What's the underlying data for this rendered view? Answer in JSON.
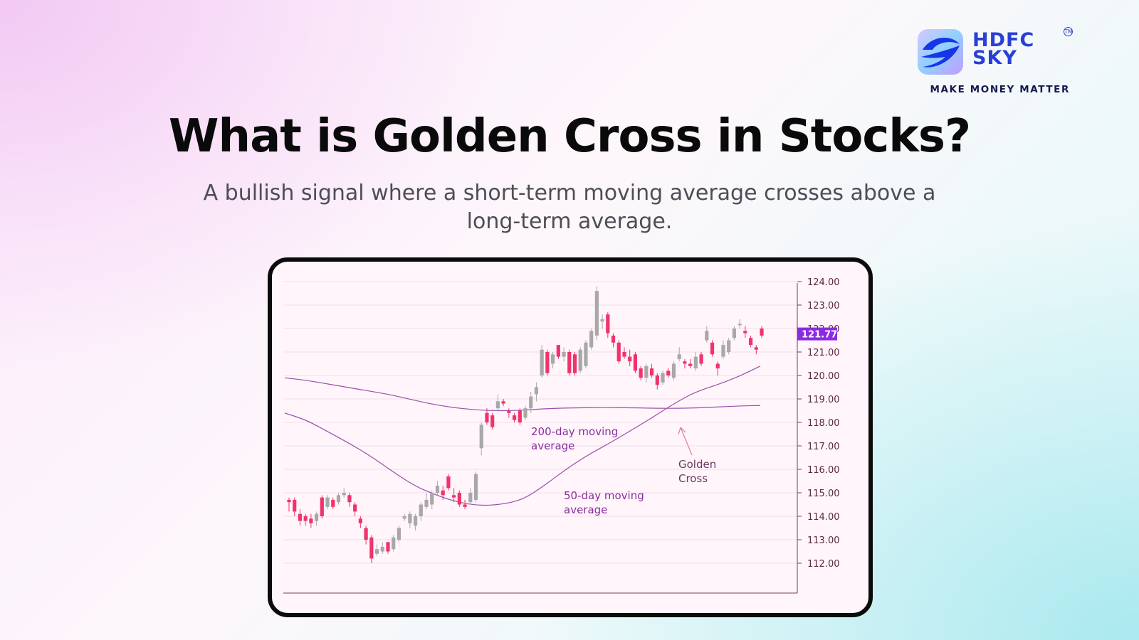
{
  "brand": {
    "name_line1": "HDFC",
    "name_line2": "SKY",
    "trademark": "TM",
    "tagline": "MAKE MONEY MATTER",
    "color_primary": "#2a3fd6",
    "color_tagline": "#14194f"
  },
  "heading": {
    "title": "What is Golden Cross in Stocks?",
    "subtitle": "A bullish signal where a short-term moving average crosses above a long-term average."
  },
  "chart_data": {
    "type": "candlestick",
    "ylim": [
      111,
      124.3
    ],
    "y_ticks": [
      "124.00",
      "123.00",
      "122.00",
      "121.00",
      "120.00",
      "119.00",
      "118.00",
      "117.00",
      "116.00",
      "115.00",
      "114.00",
      "113.00",
      "112.00"
    ],
    "price_label": "121.77",
    "grid": true,
    "colors": {
      "up": "#a8a8a8",
      "down": "#f0336b",
      "moving_average": "#9a4ea8",
      "price_tag": "#8a2be2",
      "annotation_text": "#8a2e9e",
      "golden_cross_text": "#6a3a5a"
    },
    "candles": [
      {
        "o": 114.7,
        "h": 114.8,
        "l": 114.2,
        "c": 114.6
      },
      {
        "o": 114.7,
        "h": 114.8,
        "l": 114.0,
        "c": 114.2
      },
      {
        "o": 114.1,
        "h": 114.3,
        "l": 113.6,
        "c": 113.8
      },
      {
        "o": 114.0,
        "h": 114.1,
        "l": 113.6,
        "c": 113.8
      },
      {
        "o": 113.9,
        "h": 114.1,
        "l": 113.5,
        "c": 113.7
      },
      {
        "o": 113.8,
        "h": 114.2,
        "l": 113.6,
        "c": 114.1
      },
      {
        "o": 114.8,
        "h": 114.9,
        "l": 113.9,
        "c": 114.0
      },
      {
        "o": 114.4,
        "h": 114.9,
        "l": 114.3,
        "c": 114.8
      },
      {
        "o": 114.7,
        "h": 114.8,
        "l": 114.3,
        "c": 114.4
      },
      {
        "o": 114.6,
        "h": 115.0,
        "l": 114.5,
        "c": 114.9
      },
      {
        "o": 114.9,
        "h": 115.2,
        "l": 114.8,
        "c": 115.0
      },
      {
        "o": 114.9,
        "h": 115.0,
        "l": 114.4,
        "c": 114.6
      },
      {
        "o": 114.5,
        "h": 114.6,
        "l": 114.0,
        "c": 114.2
      },
      {
        "o": 113.9,
        "h": 114.0,
        "l": 113.5,
        "c": 113.7
      },
      {
        "o": 113.5,
        "h": 113.6,
        "l": 112.8,
        "c": 113.0
      },
      {
        "o": 113.1,
        "h": 113.2,
        "l": 112.0,
        "c": 112.2
      },
      {
        "o": 112.4,
        "h": 112.8,
        "l": 112.3,
        "c": 112.6
      },
      {
        "o": 112.5,
        "h": 112.9,
        "l": 112.4,
        "c": 112.7
      },
      {
        "o": 112.9,
        "h": 112.9,
        "l": 112.4,
        "c": 112.5
      },
      {
        "o": 112.6,
        "h": 113.2,
        "l": 112.5,
        "c": 113.1
      },
      {
        "o": 113.0,
        "h": 113.6,
        "l": 112.9,
        "c": 113.5
      },
      {
        "o": 113.9,
        "h": 114.1,
        "l": 113.8,
        "c": 114.0
      },
      {
        "o": 113.7,
        "h": 114.2,
        "l": 113.5,
        "c": 114.1
      },
      {
        "o": 113.6,
        "h": 114.1,
        "l": 113.4,
        "c": 114.0
      },
      {
        "o": 114.0,
        "h": 114.6,
        "l": 113.8,
        "c": 114.5
      },
      {
        "o": 114.4,
        "h": 115.0,
        "l": 114.3,
        "c": 114.7
      },
      {
        "o": 114.5,
        "h": 115.1,
        "l": 114.3,
        "c": 115.0
      },
      {
        "o": 115.0,
        "h": 115.5,
        "l": 114.9,
        "c": 115.3
      },
      {
        "o": 115.1,
        "h": 115.3,
        "l": 114.7,
        "c": 114.9
      },
      {
        "o": 115.7,
        "h": 115.8,
        "l": 115.1,
        "c": 115.2
      },
      {
        "o": 114.9,
        "h": 115.2,
        "l": 114.6,
        "c": 114.8
      },
      {
        "o": 115.0,
        "h": 115.1,
        "l": 114.4,
        "c": 114.5
      },
      {
        "o": 114.5,
        "h": 114.7,
        "l": 114.3,
        "c": 114.4
      },
      {
        "o": 114.6,
        "h": 115.2,
        "l": 114.5,
        "c": 115.0
      },
      {
        "o": 114.7,
        "h": 115.9,
        "l": 114.6,
        "c": 115.8
      },
      {
        "o": 116.9,
        "h": 118.0,
        "l": 116.6,
        "c": 117.9
      },
      {
        "o": 118.4,
        "h": 118.6,
        "l": 117.9,
        "c": 118.0
      },
      {
        "o": 118.3,
        "h": 118.4,
        "l": 117.7,
        "c": 117.8
      },
      {
        "o": 118.6,
        "h": 119.2,
        "l": 118.5,
        "c": 118.9
      },
      {
        "o": 118.9,
        "h": 119.0,
        "l": 118.7,
        "c": 118.8
      },
      {
        "o": 118.5,
        "h": 118.6,
        "l": 118.2,
        "c": 118.4
      },
      {
        "o": 118.3,
        "h": 118.4,
        "l": 118.0,
        "c": 118.1
      },
      {
        "o": 118.5,
        "h": 118.6,
        "l": 117.9,
        "c": 118.0
      },
      {
        "o": 118.2,
        "h": 118.7,
        "l": 118.1,
        "c": 118.6
      },
      {
        "o": 118.6,
        "h": 119.3,
        "l": 118.4,
        "c": 119.1
      },
      {
        "o": 119.2,
        "h": 119.7,
        "l": 118.9,
        "c": 119.5
      },
      {
        "o": 120.0,
        "h": 121.3,
        "l": 119.9,
        "c": 121.1
      },
      {
        "o": 121.0,
        "h": 121.1,
        "l": 120.0,
        "c": 120.1
      },
      {
        "o": 120.5,
        "h": 121.0,
        "l": 120.3,
        "c": 120.9
      },
      {
        "o": 121.3,
        "h": 121.3,
        "l": 120.7,
        "c": 120.8
      },
      {
        "o": 120.8,
        "h": 121.2,
        "l": 120.6,
        "c": 121.0
      },
      {
        "o": 121.0,
        "h": 121.1,
        "l": 120.0,
        "c": 120.1
      },
      {
        "o": 120.9,
        "h": 121.0,
        "l": 120.0,
        "c": 120.1
      },
      {
        "o": 120.2,
        "h": 121.2,
        "l": 120.1,
        "c": 121.1
      },
      {
        "o": 120.4,
        "h": 121.5,
        "l": 120.3,
        "c": 121.4
      },
      {
        "o": 121.2,
        "h": 122.0,
        "l": 121.1,
        "c": 121.9
      },
      {
        "o": 121.7,
        "h": 123.8,
        "l": 121.5,
        "c": 123.6
      },
      {
        "o": 122.3,
        "h": 122.6,
        "l": 122.0,
        "c": 122.4
      },
      {
        "o": 122.6,
        "h": 122.7,
        "l": 121.6,
        "c": 121.8
      },
      {
        "o": 121.7,
        "h": 121.8,
        "l": 121.2,
        "c": 121.4
      },
      {
        "o": 121.4,
        "h": 121.5,
        "l": 120.5,
        "c": 120.6
      },
      {
        "o": 121.0,
        "h": 121.2,
        "l": 120.7,
        "c": 120.8
      },
      {
        "o": 120.8,
        "h": 121.1,
        "l": 120.4,
        "c": 120.6
      },
      {
        "o": 120.9,
        "h": 121.0,
        "l": 120.1,
        "c": 120.2
      },
      {
        "o": 120.3,
        "h": 120.4,
        "l": 119.8,
        "c": 119.9
      },
      {
        "o": 119.9,
        "h": 120.5,
        "l": 119.7,
        "c": 120.4
      },
      {
        "o": 120.3,
        "h": 120.5,
        "l": 119.9,
        "c": 120.0
      },
      {
        "o": 120.0,
        "h": 120.1,
        "l": 119.4,
        "c": 119.6
      },
      {
        "o": 119.7,
        "h": 120.2,
        "l": 119.6,
        "c": 120.1
      },
      {
        "o": 120.2,
        "h": 120.3,
        "l": 119.9,
        "c": 120.0
      },
      {
        "o": 119.9,
        "h": 120.6,
        "l": 119.8,
        "c": 120.5
      },
      {
        "o": 120.7,
        "h": 121.2,
        "l": 120.6,
        "c": 120.9
      },
      {
        "o": 120.6,
        "h": 120.7,
        "l": 120.3,
        "c": 120.5
      },
      {
        "o": 120.5,
        "h": 120.7,
        "l": 120.3,
        "c": 120.4
      },
      {
        "o": 120.3,
        "h": 121.0,
        "l": 120.2,
        "c": 120.8
      },
      {
        "o": 120.9,
        "h": 121.0,
        "l": 120.4,
        "c": 120.5
      },
      {
        "o": 121.5,
        "h": 122.1,
        "l": 121.4,
        "c": 121.9
      },
      {
        "o": 121.4,
        "h": 121.5,
        "l": 120.8,
        "c": 120.9
      },
      {
        "o": 120.5,
        "h": 120.6,
        "l": 120.0,
        "c": 120.3
      },
      {
        "o": 120.8,
        "h": 121.5,
        "l": 120.7,
        "c": 121.3
      },
      {
        "o": 121.0,
        "h": 121.6,
        "l": 120.9,
        "c": 121.5
      },
      {
        "o": 121.6,
        "h": 122.1,
        "l": 121.5,
        "c": 122.0
      },
      {
        "o": 122.2,
        "h": 122.4,
        "l": 122.0,
        "c": 122.2
      },
      {
        "o": 121.9,
        "h": 122.1,
        "l": 121.6,
        "c": 121.8
      },
      {
        "o": 121.6,
        "h": 121.7,
        "l": 121.2,
        "c": 121.3
      },
      {
        "o": 121.2,
        "h": 121.3,
        "l": 120.9,
        "c": 121.1
      },
      {
        "o": 122.0,
        "h": 122.1,
        "l": 121.6,
        "c": 121.7
      }
    ],
    "series": [
      {
        "name": "200-day moving average",
        "values": [
          119.9,
          119.8,
          119.65,
          119.5,
          119.35,
          119.2,
          119.0,
          118.8,
          118.65,
          118.55,
          118.5,
          118.5,
          118.55,
          118.6,
          118.62,
          118.63,
          118.63,
          118.62,
          118.6,
          118.6,
          118.62,
          118.66,
          118.7,
          118.72
        ]
      },
      {
        "name": "50-day moving average",
        "values": [
          118.4,
          118.1,
          117.6,
          117.1,
          116.55,
          115.9,
          115.3,
          114.9,
          114.6,
          114.45,
          114.5,
          114.7,
          115.3,
          116.0,
          116.6,
          117.1,
          117.65,
          118.2,
          118.8,
          119.3,
          119.6,
          119.95,
          120.4
        ]
      }
    ],
    "annotations": {
      "ma200_label": [
        "200-day moving",
        "average"
      ],
      "ma50_label": [
        "50-day moving",
        "average"
      ],
      "cross_label": [
        "Golden",
        "Cross"
      ]
    }
  }
}
